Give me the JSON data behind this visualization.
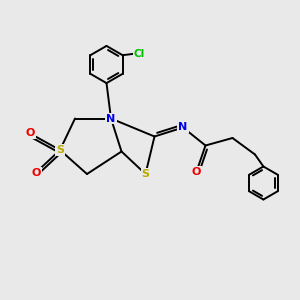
{
  "bg_color": "#e9e9e9",
  "atom_colors": {
    "C": "#000000",
    "N": "#0000ee",
    "S": "#bbaa00",
    "O": "#ee0000",
    "Cl": "#00bb00"
  },
  "bond_color": "#000000",
  "bond_width": 1.4,
  "figsize": [
    3.0,
    3.0
  ],
  "dpi": 100,
  "xlim": [
    0,
    10
  ],
  "ylim": [
    0,
    10
  ]
}
